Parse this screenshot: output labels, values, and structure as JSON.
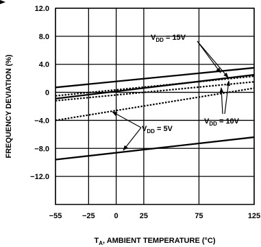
{
  "chart_data": {
    "type": "line",
    "xlabel": "T",
    "xlabel_sub": "A",
    "xlabel_rest": ", AMBIENT TEMPERATURE (°C)",
    "ylabel": "FREQUENCY DEVIATION (%)",
    "xlim": [
      -55,
      125
    ],
    "ylim": [
      -16,
      12
    ],
    "x_ticks": [
      -55,
      -25,
      0,
      25,
      75,
      125
    ],
    "x_tick_labels": [
      "−55",
      "−25",
      "0",
      "25",
      "75",
      "125"
    ],
    "y_ticks": [
      12,
      8,
      4,
      0,
      -4,
      -8,
      -12
    ],
    "y_tick_labels": [
      "12.0",
      "8.0",
      "4.0",
      "0",
      "−4.0",
      "−8.0",
      "−12.0"
    ],
    "grid": true,
    "series": [
      {
        "style": "solid",
        "x": [
          -55,
          125
        ],
        "y": [
          0.7,
          3.5
        ]
      },
      {
        "style": "solid",
        "x": [
          -55,
          125
        ],
        "y": [
          -0.9,
          2.5
        ]
      },
      {
        "style": "solid",
        "x": [
          -55,
          125
        ],
        "y": [
          -9.6,
          -6.4
        ]
      },
      {
        "style": "dotted",
        "x": [
          -55,
          125
        ],
        "y": [
          -0.5,
          2.3
        ]
      },
      {
        "style": "dotted",
        "x": [
          -55,
          125
        ],
        "y": [
          -1.2,
          1.5
        ]
      },
      {
        "style": "dotted",
        "x": [
          -55,
          125
        ],
        "y": [
          -4.0,
          0.6
        ]
      }
    ],
    "annotations": [
      {
        "base": "V",
        "sub": "DD",
        "rest": " = 15V"
      },
      {
        "base": "V",
        "sub": "DD",
        "rest": " = 10V"
      },
      {
        "base": "V",
        "sub": "DD",
        "rest": " = 5V"
      }
    ]
  }
}
